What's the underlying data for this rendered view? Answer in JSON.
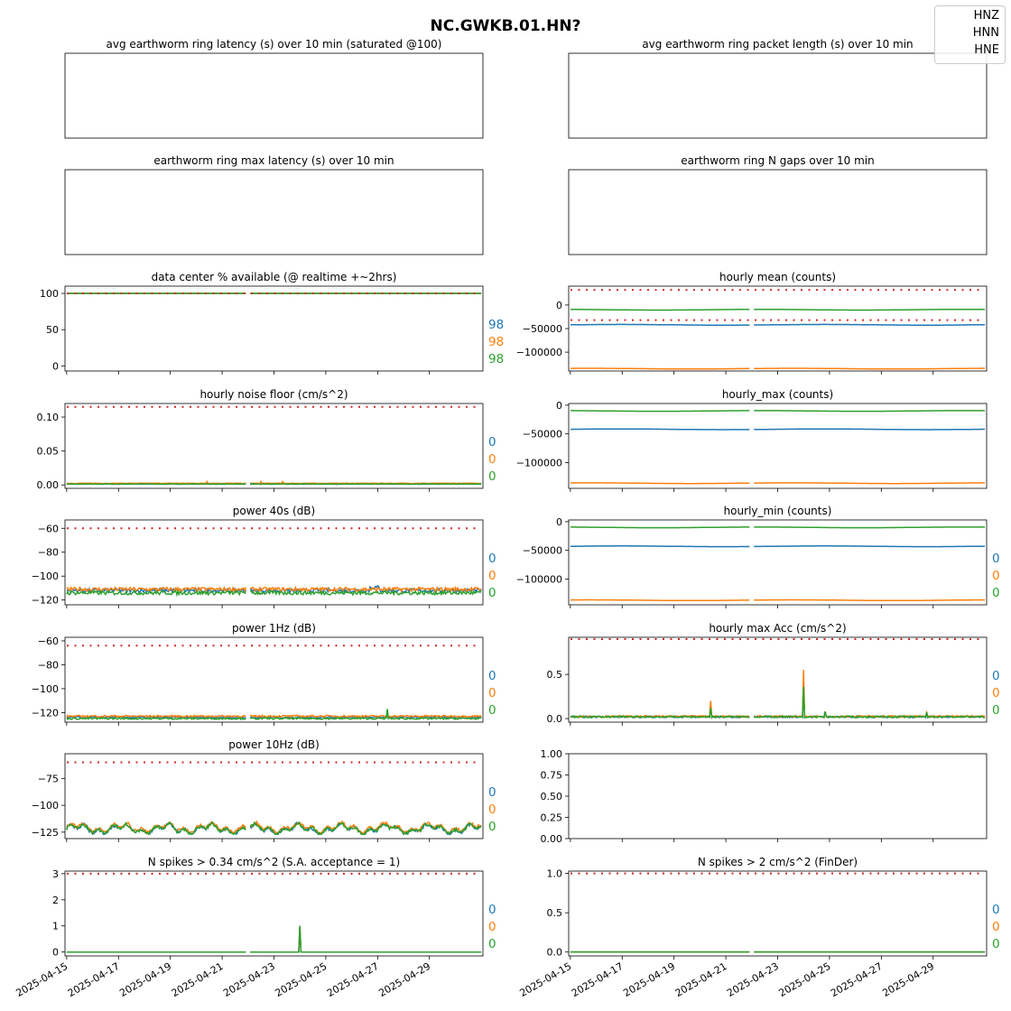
{
  "figure_title": "NC.GWKB.01.HN?",
  "legend": [
    "HNZ",
    "HNN",
    "HNE"
  ],
  "colors": {
    "HNZ": "#1f77b4",
    "HNN": "#ff7f0e",
    "HNE": "#2ca02c",
    "threshold": "#d62728"
  },
  "chart_data": [
    {
      "id": "latency_avg",
      "type": "line",
      "title": "avg earthworm ring latency (s)   over 10 min (saturated @100)",
      "empty": true,
      "yticks": [],
      "series": []
    },
    {
      "id": "packet_length",
      "type": "line",
      "title": "avg earthworm ring packet length (s)   over 10 min",
      "empty": true,
      "yticks": [],
      "series": []
    },
    {
      "id": "latency_max",
      "type": "line",
      "title": "earthworm ring max latency (s)   over 10 min",
      "empty": true,
      "yticks": [],
      "series": []
    },
    {
      "id": "n_gaps",
      "type": "line",
      "title": "earthworm ring N gaps   over 10 min",
      "empty": true,
      "yticks": [],
      "series": []
    },
    {
      "id": "availability",
      "type": "line",
      "title": "data center % available (@ realtime +~2hrs)",
      "ylim": [
        -7,
        110
      ],
      "yticks": [
        0,
        50,
        100
      ],
      "ytick_labels": [
        "0",
        "50",
        "100"
      ],
      "threshold": 100,
      "side_values": [
        "98",
        "98",
        "98"
      ],
      "series": [
        {
          "name": "HNZ",
          "base": 100
        },
        {
          "name": "HNN",
          "base": 100
        },
        {
          "name": "HNE",
          "base": 100
        }
      ]
    },
    {
      "id": "hourly_mean",
      "type": "line",
      "title": "hourly mean (counts)",
      "ylim": [
        -140000,
        40000
      ],
      "yticks": [
        0,
        -50000,
        -100000
      ],
      "ytick_labels": [
        "0",
        "−50000",
        "−100000"
      ],
      "thresholds": [
        32000,
        -32000
      ],
      "side_values": [],
      "series": [
        {
          "name": "HNZ",
          "base": -42000
        },
        {
          "name": "HNN",
          "base": -135000
        },
        {
          "name": "HNE",
          "base": -10000
        }
      ]
    },
    {
      "id": "noise_floor",
      "type": "line",
      "title": "hourly noise floor (cm/s^2)",
      "ylim": [
        -0.005,
        0.12
      ],
      "yticks": [
        0.0,
        0.05,
        0.1
      ],
      "ytick_labels": [
        "0.00",
        "0.05",
        "0.10"
      ],
      "threshold": 0.115,
      "side_values": [
        "0",
        "0",
        "0"
      ],
      "series": [
        {
          "name": "HNZ",
          "base": 0.001
        },
        {
          "name": "HNN",
          "base": 0.002
        },
        {
          "name": "HNE",
          "base": 0.001
        }
      ]
    },
    {
      "id": "hourly_max",
      "type": "line",
      "title": "hourly_max (counts)",
      "ylim": [
        -145000,
        3000
      ],
      "yticks": [
        0,
        -50000,
        -100000
      ],
      "ytick_labels": [
        "0",
        "−50000",
        "−100000"
      ],
      "side_values": [],
      "series": [
        {
          "name": "HNZ",
          "base": -42000
        },
        {
          "name": "HNN",
          "base": -136000
        },
        {
          "name": "HNE",
          "base": -10000
        }
      ]
    },
    {
      "id": "power_40s",
      "type": "line",
      "title": "power 40s (dB)",
      "ylim": [
        -124,
        -53
      ],
      "yticks": [
        -60,
        -80,
        -100,
        -120
      ],
      "ytick_labels": [
        "−60",
        "−80",
        "−100",
        "−120"
      ],
      "threshold": -60,
      "side_values": [
        "0",
        "0",
        "0"
      ],
      "series": [
        {
          "name": "HNZ",
          "base": -112
        },
        {
          "name": "HNN",
          "base": -111
        },
        {
          "name": "HNE",
          "base": -114
        }
      ]
    },
    {
      "id": "hourly_min",
      "type": "line",
      "title": "hourly_min (counts)",
      "ylim": [
        -145000,
        3000
      ],
      "yticks": [
        0,
        -50000,
        -100000
      ],
      "ytick_labels": [
        "0",
        "−50000",
        "−100000"
      ],
      "side_values": [
        "0",
        "0",
        "0"
      ],
      "series": [
        {
          "name": "HNZ",
          "base": -43000
        },
        {
          "name": "HNN",
          "base": -137000
        },
        {
          "name": "HNE",
          "base": -10000
        }
      ]
    },
    {
      "id": "power_1hz",
      "type": "line",
      "title": "power 1Hz (dB)",
      "ylim": [
        -128,
        -57
      ],
      "yticks": [
        -60,
        -80,
        -100,
        -120
      ],
      "ytick_labels": [
        "−60",
        "−80",
        "−100",
        "−120"
      ],
      "threshold": -64,
      "side_values": [
        "0",
        "0",
        "0"
      ],
      "series": [
        {
          "name": "HNZ",
          "base": -124
        },
        {
          "name": "HNN",
          "base": -123
        },
        {
          "name": "HNE",
          "base": -125
        }
      ]
    },
    {
      "id": "hourly_max_acc",
      "type": "line",
      "title": "hourly max Acc (cm/s^2)",
      "ylim": [
        -0.04,
        0.92
      ],
      "yticks": [
        0.0,
        0.5
      ],
      "ytick_labels": [
        "0.0",
        "0.5"
      ],
      "threshold": 0.9,
      "side_values": [
        "0",
        "0",
        "0"
      ],
      "series": [
        {
          "name": "HNZ",
          "base": 0.01
        },
        {
          "name": "HNN",
          "base": 0.015
        },
        {
          "name": "HNE",
          "base": 0.01
        }
      ]
    },
    {
      "id": "power_10hz",
      "type": "line",
      "title": "power 10Hz (dB)",
      "ylim": [
        -131,
        -52
      ],
      "yticks": [
        -75,
        -100,
        -125
      ],
      "ytick_labels": [
        "−75",
        "−100",
        "−125"
      ],
      "threshold": -60,
      "side_values": [
        "0",
        "0",
        "0"
      ],
      "series": [
        {
          "name": "HNZ",
          "base": -122
        },
        {
          "name": "HNN",
          "base": -121
        },
        {
          "name": "HNE",
          "base": -122
        }
      ]
    },
    {
      "id": "empty_panel",
      "type": "line",
      "title": "",
      "ylim": [
        0,
        1
      ],
      "yticks": [
        0,
        0.25,
        0.5,
        0.75,
        1.0
      ],
      "ytick_labels": [
        "0.00",
        "0.25",
        "0.50",
        "0.75",
        "1.00"
      ],
      "side_values": [],
      "series": []
    },
    {
      "id": "spikes_034",
      "type": "line",
      "title": "N spikes > 0.34 cm/s^2 (S.A. acceptance = 1)",
      "ylim": [
        -0.15,
        3.1
      ],
      "yticks": [
        0,
        1,
        2,
        3
      ],
      "ytick_labels": [
        "0",
        "1",
        "2",
        "3"
      ],
      "threshold": 3,
      "side_values": [
        "0",
        "0",
        "0"
      ],
      "series": [
        {
          "name": "HNZ",
          "base": 0
        },
        {
          "name": "HNN",
          "base": 0
        },
        {
          "name": "HNE",
          "base": 0
        }
      ]
    },
    {
      "id": "spikes_2",
      "type": "line",
      "title": "N spikes > 2 cm/s^2 (FinDer)",
      "ylim": [
        -0.05,
        1.03
      ],
      "yticks": [
        0.0,
        0.5,
        1.0
      ],
      "ytick_labels": [
        "0.0",
        "0.5",
        "1.0"
      ],
      "threshold": 1,
      "side_values": [
        "0",
        "0",
        "0"
      ],
      "series": [
        {
          "name": "HNZ",
          "base": 0
        },
        {
          "name": "HNN",
          "base": 0
        },
        {
          "name": "HNE",
          "base": 0
        }
      ]
    }
  ],
  "x_axis": {
    "start": "2025-04-15",
    "end": "2025-05-01",
    "ticks": [
      "2025-04-15",
      "2025-04-17",
      "2025-04-19",
      "2025-04-21",
      "2025-04-23",
      "2025-04-25",
      "2025-04-27",
      "2025-04-29"
    ]
  }
}
